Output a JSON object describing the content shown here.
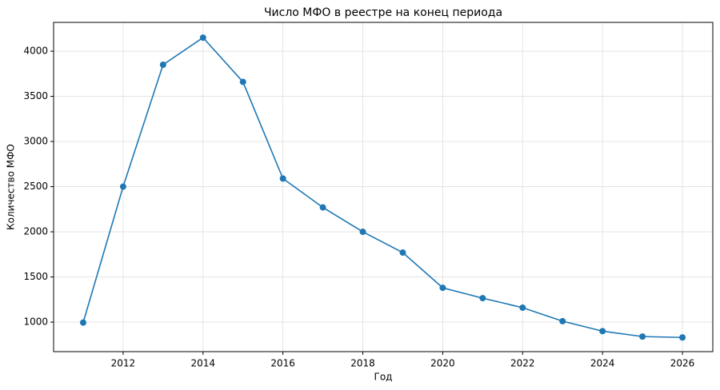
{
  "chart_data": {
    "type": "line",
    "title": "Число МФО в реестре на конец периода",
    "xlabel": "Год",
    "ylabel": "Количество МФО",
    "x": [
      2011,
      2012,
      2013,
      2014,
      2015,
      2016,
      2017,
      2018,
      2019,
      2020,
      2021,
      2022,
      2023,
      2024,
      2025,
      2026
    ],
    "series": [
      {
        "color": "#1f77b4",
        "values": [
          995,
          2500,
          3850,
          4150,
          3660,
          2590,
          2270,
          2000,
          1770,
          1380,
          1265,
          1160,
          1010,
          900,
          840,
          830
        ]
      }
    ],
    "xlim": [
      2010.26,
      2026.76
    ],
    "xticks": [
      2012,
      2014,
      2016,
      2018,
      2020,
      2022,
      2024,
      2026
    ],
    "ylim": [
      673,
      4319
    ],
    "yticks": [
      1000,
      1500,
      2000,
      2500,
      3000,
      3500,
      4000
    ],
    "grid": true
  }
}
